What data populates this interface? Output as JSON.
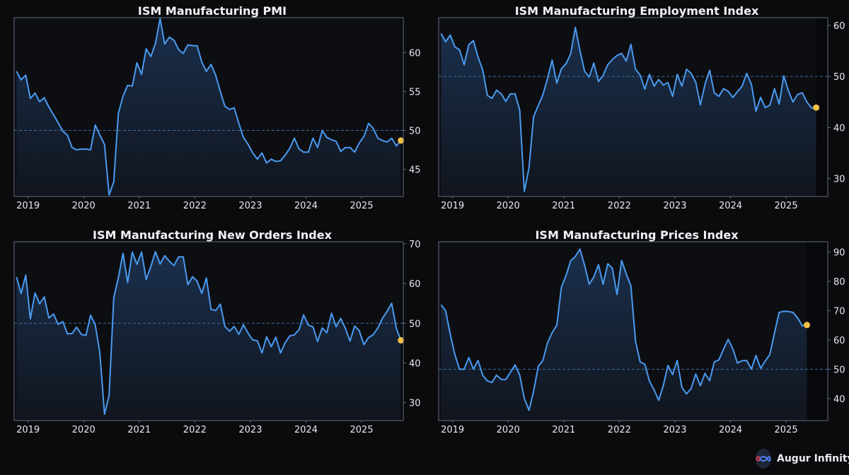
{
  "brand": {
    "name": "Augur Infinity",
    "icon": "infinity-logo-icon"
  },
  "colors": {
    "background": "#0b0b0e",
    "line": "#4a9af0",
    "marker": "#f3c046",
    "ref": "#3d6fa5",
    "axis": "#5f6c80",
    "text": "#e6e9ee"
  },
  "chart_data": [
    {
      "type": "line",
      "title": "ISM Manufacturing PMI",
      "x": {
        "start": 2018.75,
        "end": 2025.75,
        "ticks": [
          "2019",
          "2020",
          "2021",
          "2022",
          "2023",
          "2024",
          "2025"
        ]
      },
      "ylim": [
        41.5,
        64.5
      ],
      "yticks": [
        45,
        50,
        55,
        60
      ],
      "reference": 50,
      "start": [
        2018,
        10
      ],
      "values": [
        57.6,
        56.5,
        57.1,
        54.1,
        54.8,
        53.7,
        54.2,
        53,
        52,
        51,
        49.9,
        49.4,
        47.8,
        47.5,
        47.6,
        47.6,
        47.5,
        50.7,
        49.4,
        48.2,
        41.7,
        43.4,
        52.2,
        54.4,
        55.8,
        55.7,
        58.7,
        57.2,
        60.5,
        59.5,
        61.2,
        64.4,
        61.1,
        62,
        61.6,
        60.4,
        59.9,
        61,
        60.9,
        60.9,
        58.8,
        57.6,
        58.5,
        57.1,
        55,
        53.1,
        52.7,
        52.9,
        50.9,
        49.1,
        48.2,
        47.1,
        46.3,
        47.1,
        45.8,
        46.3,
        46,
        46.1,
        46.8,
        47.7,
        49,
        47.6,
        47.2,
        47.2,
        49,
        47.8,
        50,
        49.1,
        48.8,
        48.6,
        47.3,
        47.8,
        47.8,
        47.2,
        48.4,
        49.2,
        50.9,
        50.3,
        49,
        48.7,
        48.5,
        49,
        48,
        48.7
      ]
    },
    {
      "type": "line",
      "title": "ISM Manufacturing Employment Index",
      "x": {
        "start": 2018.75,
        "end": 2025.75,
        "ticks": [
          "2019",
          "2020",
          "2021",
          "2022",
          "2023",
          "2024",
          "2025"
        ]
      },
      "ylim": [
        26.5,
        61.5
      ],
      "yticks": [
        30,
        40,
        50,
        60
      ],
      "reference": 50,
      "start": [
        2018,
        10
      ],
      "values": [
        58.4,
        56.8,
        58.1,
        55.8,
        55.2,
        52.3,
        56.2,
        57,
        53.8,
        51.3,
        46.3,
        45.7,
        47.3,
        46.6,
        45.1,
        46.6,
        46.6,
        43.4,
        27.5,
        32.1,
        42.1,
        44.3,
        46.4,
        49.6,
        53.2,
        48.7,
        51.5,
        52.5,
        54.4,
        59.6,
        55.1,
        51,
        49.9,
        52.6,
        49,
        50.2,
        52.3,
        53.3,
        54.1,
        54.5,
        53,
        56.3,
        51.4,
        50.3,
        47.5,
        50.4,
        48.1,
        49.4,
        48.3,
        48.8,
        46.1,
        50.4,
        48.1,
        51.4,
        50.6,
        48.9,
        44.4,
        48.5,
        51.2,
        46.8,
        46.1,
        47.6,
        47.1,
        45.9,
        47,
        48.1,
        50.6,
        48.5,
        43.2,
        45.9,
        43.9,
        44.4,
        47.6,
        44.6,
        50.1,
        47.2,
        45,
        46.5,
        46.8,
        45,
        43.8,
        43.9
      ]
    },
    {
      "type": "line",
      "title": "ISM Manufacturing New Orders Index",
      "x": {
        "start": 2018.75,
        "end": 2025.75,
        "ticks": [
          "2019",
          "2020",
          "2021",
          "2022",
          "2023",
          "2024",
          "2025"
        ]
      },
      "ylim": [
        25.5,
        70.5
      ],
      "yticks": [
        30,
        40,
        50,
        60,
        70
      ],
      "reference": 50,
      "start": [
        2018,
        10
      ],
      "values": [
        61.6,
        57.5,
        62.1,
        51.1,
        57.6,
        54.9,
        56.6,
        51.3,
        52.3,
        49.7,
        50.4,
        47.3,
        47.4,
        49,
        47.2,
        46.9,
        52,
        49.6,
        42.6,
        27.1,
        31.8,
        56.4,
        61.5,
        67.6,
        60.2,
        67.9,
        64.8,
        67.9,
        61,
        64.3,
        68,
        64.9,
        67,
        65.6,
        64.5,
        66.7,
        66.7,
        59.7,
        61.7,
        60.6,
        57.5,
        61.4,
        53.5,
        53.2,
        54.8,
        49.2,
        48,
        49.2,
        47.2,
        49.6,
        47.5,
        45.8,
        45.6,
        42.5,
        46.6,
        44.1,
        46.5,
        42.5,
        45.1,
        46.8,
        47.1,
        48.4,
        52.1,
        49.5,
        49.1,
        45.4,
        48.8,
        47.6,
        52.5,
        49.1,
        51.2,
        48.7,
        45.5,
        49.3,
        48.1,
        44.6,
        46.4,
        47.1,
        48.8,
        51.2,
        53,
        55,
        48.7,
        45.7
      ]
    },
    {
      "type": "line",
      "title": "ISM Manufacturing Prices Index",
      "x": {
        "start": 2018.75,
        "end": 2025.75,
        "ticks": [
          "2019",
          "2020",
          "2021",
          "2022",
          "2023",
          "2024",
          "2025"
        ]
      },
      "ylim": [
        32.5,
        93.5
      ],
      "yticks": [
        40,
        50,
        60,
        70,
        80,
        90
      ],
      "reference": 50,
      "start": [
        2018,
        10
      ],
      "values": [
        72,
        70,
        62,
        55,
        50,
        50,
        54,
        50,
        53,
        48,
        46,
        45.5,
        48,
        46.5,
        46.5,
        49,
        51.5,
        48,
        40,
        36,
        42.5,
        51,
        53,
        59,
        62.5,
        65,
        78,
        82,
        87,
        88.5,
        91,
        85.5,
        79,
        81.5,
        85.7,
        79,
        86,
        84.5,
        75.5,
        87.1,
        82.5,
        78.5,
        59.5,
        52.5,
        51.7,
        46,
        43,
        39.4,
        44.5,
        51.3,
        48.2,
        53,
        43.8,
        41.6,
        43.4,
        48.4,
        44.4,
        48.6,
        46.1,
        52.5,
        53.2,
        56.9,
        60.2,
        57,
        52.1,
        52.9,
        53,
        50,
        54.7,
        50.3,
        52.8,
        55.1,
        62.4,
        69.4,
        69.8,
        69.7,
        69.4,
        67.5,
        64.8,
        65.1
      ]
    }
  ]
}
